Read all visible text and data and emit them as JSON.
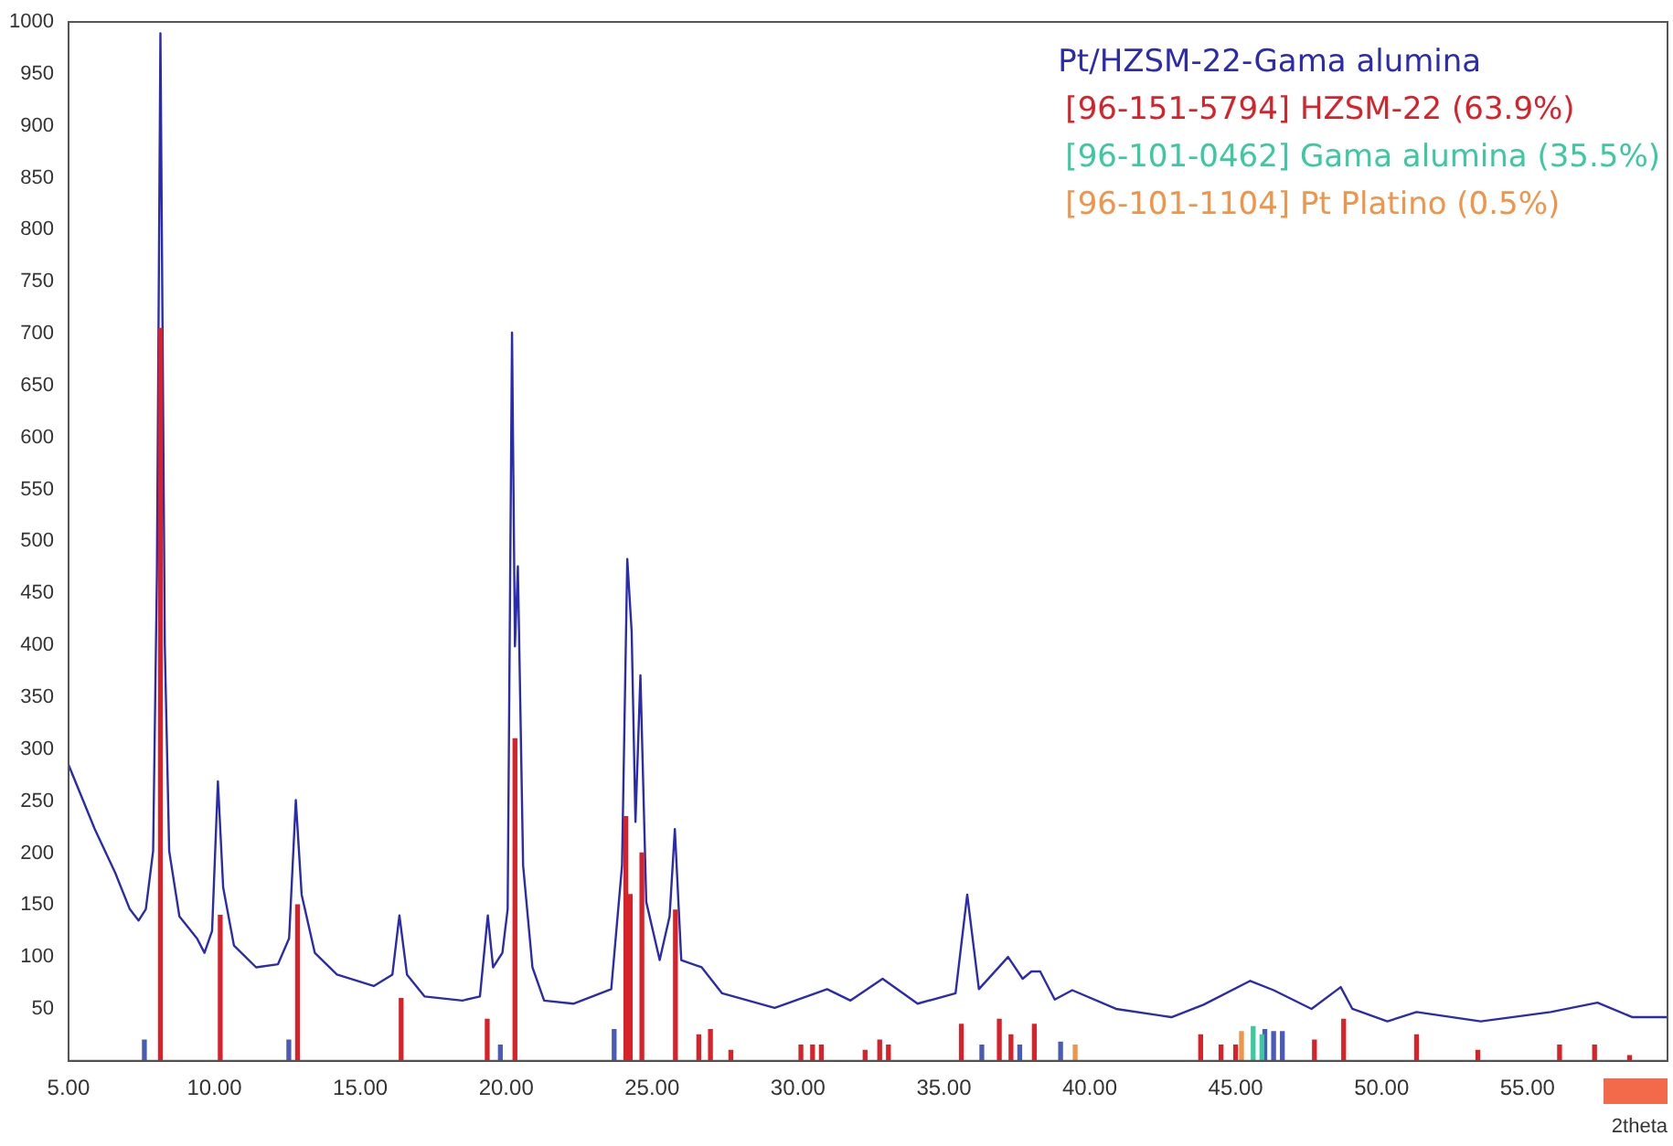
{
  "chart_data": {
    "type": "line",
    "xlabel": "2theta",
    "xlim": [
      5,
      59.8
    ],
    "ylim": [
      0,
      1000
    ],
    "xticks": [
      {
        "value": 5,
        "label": "5.00"
      },
      {
        "value": 10,
        "label": "10.00"
      },
      {
        "value": 15,
        "label": "15.00"
      },
      {
        "value": 20,
        "label": "20.00"
      },
      {
        "value": 25,
        "label": "25.00"
      },
      {
        "value": 30,
        "label": "30.00"
      },
      {
        "value": 35,
        "label": "35.00"
      },
      {
        "value": 40,
        "label": "40.00"
      },
      {
        "value": 45,
        "label": "45.00"
      },
      {
        "value": 50,
        "label": "50.00"
      },
      {
        "value": 55,
        "label": "55.00"
      }
    ],
    "yticks": [
      50,
      100,
      150,
      200,
      250,
      300,
      350,
      400,
      450,
      500,
      550,
      600,
      650,
      700,
      750,
      800,
      850,
      900,
      950,
      1000
    ],
    "grid": false,
    "legend": "top right",
    "marker": "none",
    "line_style": "solid",
    "series": [
      {
        "name": "Pt/HZSM-22-Gama alumina",
        "color": "#2b2bb0",
        "x": [
          5.0,
          5.9,
          6.6,
          7.1,
          7.4,
          7.65,
          7.9,
          8.03,
          8.15,
          8.3,
          8.45,
          8.8,
          9.4,
          9.66,
          9.92,
          10.12,
          10.3,
          10.67,
          11.43,
          12.18,
          12.56,
          12.79,
          12.99,
          13.44,
          14.2,
          15.46,
          16.1,
          16.34,
          16.6,
          17.2,
          18.5,
          19.1,
          19.37,
          19.55,
          19.87,
          20.05,
          20.2,
          20.3,
          20.4,
          20.58,
          20.9,
          21.3,
          22.3,
          23.6,
          23.97,
          24.15,
          24.3,
          24.43,
          24.6,
          24.8,
          25.26,
          25.6,
          25.78,
          26.0,
          26.7,
          27.4,
          29.2,
          31.0,
          31.8,
          32.9,
          34.1,
          35.4,
          35.8,
          36.2,
          37.2,
          37.7,
          38.0,
          38.3,
          38.8,
          39.4,
          40.9,
          42.8,
          43.9,
          45.5,
          46.3,
          47.6,
          48.6,
          49.0,
          50.2,
          51.2,
          53.4,
          55.8,
          57.4,
          58.6,
          59.8
        ],
        "values": [
          285,
          223,
          181,
          146,
          135,
          146,
          202,
          469,
          989,
          400,
          202,
          139,
          118,
          104,
          125,
          269,
          167,
          111,
          90,
          93,
          118,
          251,
          160,
          104,
          83,
          72,
          83,
          140,
          83,
          62,
          58,
          62,
          140,
          90,
          104,
          146,
          701,
          399,
          476,
          188,
          90,
          58,
          55,
          69,
          188,
          483,
          413,
          230,
          371,
          153,
          97,
          139,
          223,
          97,
          90,
          65,
          51,
          69,
          58,
          79,
          55,
          65,
          160,
          69,
          100,
          79,
          86,
          86,
          59,
          68,
          50,
          42,
          54,
          77,
          68,
          50,
          71,
          50,
          38,
          47,
          38,
          47,
          56,
          42,
          42
        ]
      },
      {
        "name": "[96-151-5794] HZSM-22 (63.9%)",
        "type": "bar",
        "color": "#d8222a",
        "x": [
          8.15,
          10.2,
          12.85,
          16.4,
          19.35,
          20.3,
          24.1,
          24.25,
          24.65,
          25.8,
          26.6,
          27.0,
          27.7,
          30.1,
          30.5,
          30.8,
          32.3,
          32.8,
          33.1,
          35.6,
          36.9,
          37.3,
          38.1,
          43.8,
          44.5,
          45.0,
          47.7,
          48.7,
          51.2,
          53.3,
          56.1,
          57.3,
          58.5
        ],
        "values": [
          705,
          140,
          150,
          60,
          40,
          310,
          235,
          160,
          200,
          145,
          25,
          30,
          10,
          15,
          15,
          15,
          10,
          20,
          15,
          35,
          40,
          25,
          35,
          25,
          15,
          15,
          20,
          40,
          25,
          10,
          15,
          15,
          5
        ]
      },
      {
        "name": "[96-101-0462] Gama alumina (35.5%)",
        "type": "bar",
        "color": "#3cc8a0",
        "x": [
          45.6,
          45.9
        ],
        "values": [
          33,
          25
        ]
      },
      {
        "name": "[96-101-1104] Pt Platino (0.5%)",
        "type": "bar",
        "color": "#f0944a",
        "x": [
          39.5,
          45.2
        ],
        "values": [
          15,
          28
        ]
      },
      {
        "type": "bar",
        "color": "#4a5ab8",
        "x": [
          7.6,
          12.55,
          19.8,
          23.7,
          36.3,
          37.6,
          39.0,
          46.0,
          46.3,
          46.6
        ],
        "values": [
          20,
          20,
          15,
          30,
          15,
          15,
          18,
          30,
          28,
          28
        ]
      }
    ]
  }
}
